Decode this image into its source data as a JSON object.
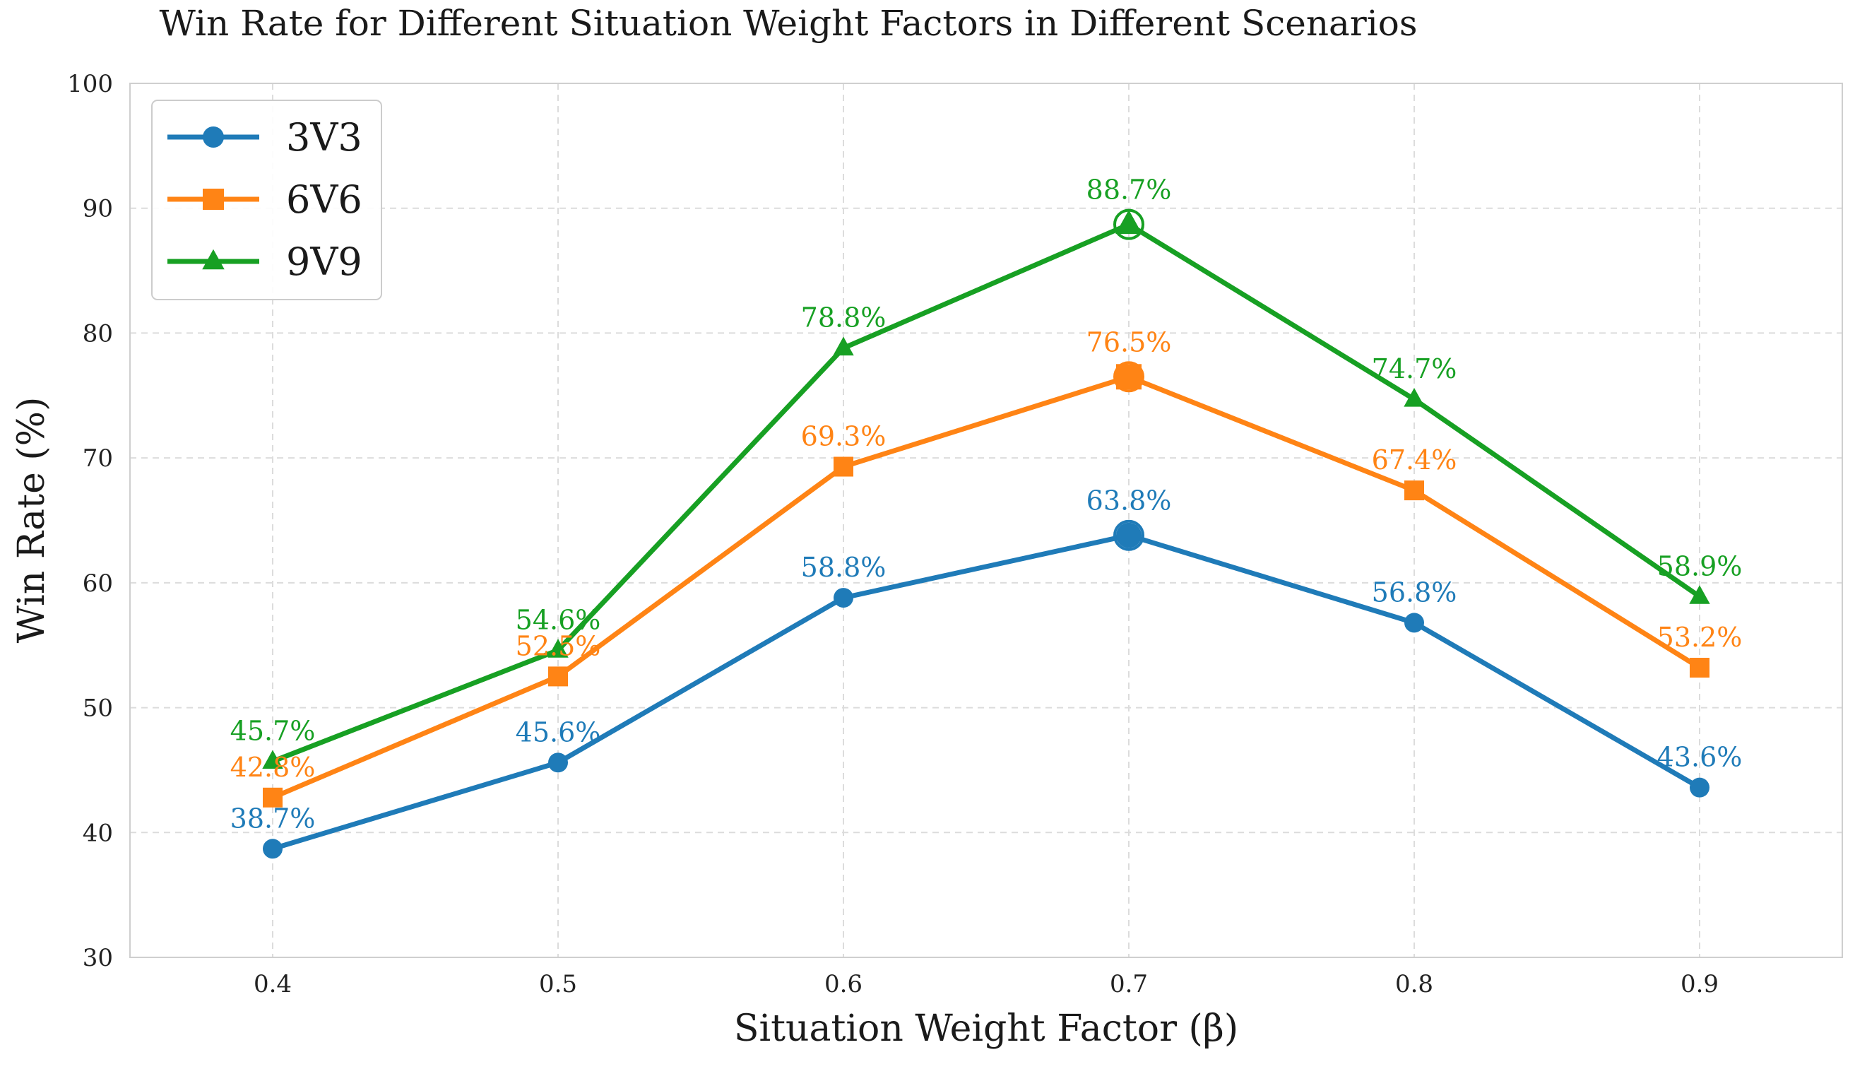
{
  "chart_data": {
    "type": "line",
    "title": "Win Rate for Different Situation Weight Factors in Different Scenarios",
    "xlabel": "Situation Weight Factor (β)",
    "ylabel": "Win Rate (%)",
    "x": [
      0.4,
      0.5,
      0.6,
      0.7,
      0.8,
      0.9
    ],
    "x_tick_labels": [
      "0.4",
      "0.5",
      "0.6",
      "0.7",
      "0.8",
      "0.9"
    ],
    "xlim": [
      0.35,
      0.95
    ],
    "ylim": [
      30,
      100
    ],
    "y_ticks": [
      30,
      40,
      50,
      60,
      70,
      80,
      90,
      100
    ],
    "y_tick_labels": [
      "30",
      "40",
      "50",
      "60",
      "70",
      "80",
      "90",
      "100"
    ],
    "grid": true,
    "legend_position": "top-left",
    "highlight_x": 0.7,
    "series": [
      {
        "name": "3V3",
        "color": "#1f7bb8",
        "marker": "circle",
        "values": [
          38.7,
          45.6,
          58.8,
          63.8,
          56.8,
          43.6
        ],
        "labels": [
          "38.7%",
          "45.6%",
          "58.8%",
          "63.8%",
          "56.8%",
          "43.6%"
        ]
      },
      {
        "name": "6V6",
        "color": "#ff8415",
        "marker": "square",
        "values": [
          42.8,
          52.5,
          69.3,
          76.5,
          67.4,
          53.2
        ],
        "labels": [
          "42.8%",
          "52.5%",
          "69.3%",
          "76.5%",
          "67.4%",
          "53.2%"
        ]
      },
      {
        "name": "9V9",
        "color": "#17a023",
        "marker": "triangle",
        "values": [
          45.7,
          54.6,
          78.8,
          88.7,
          74.7,
          58.9
        ],
        "labels": [
          "45.7%",
          "54.6%",
          "78.8%",
          "88.7%",
          "74.7%",
          "58.9%"
        ]
      }
    ]
  }
}
